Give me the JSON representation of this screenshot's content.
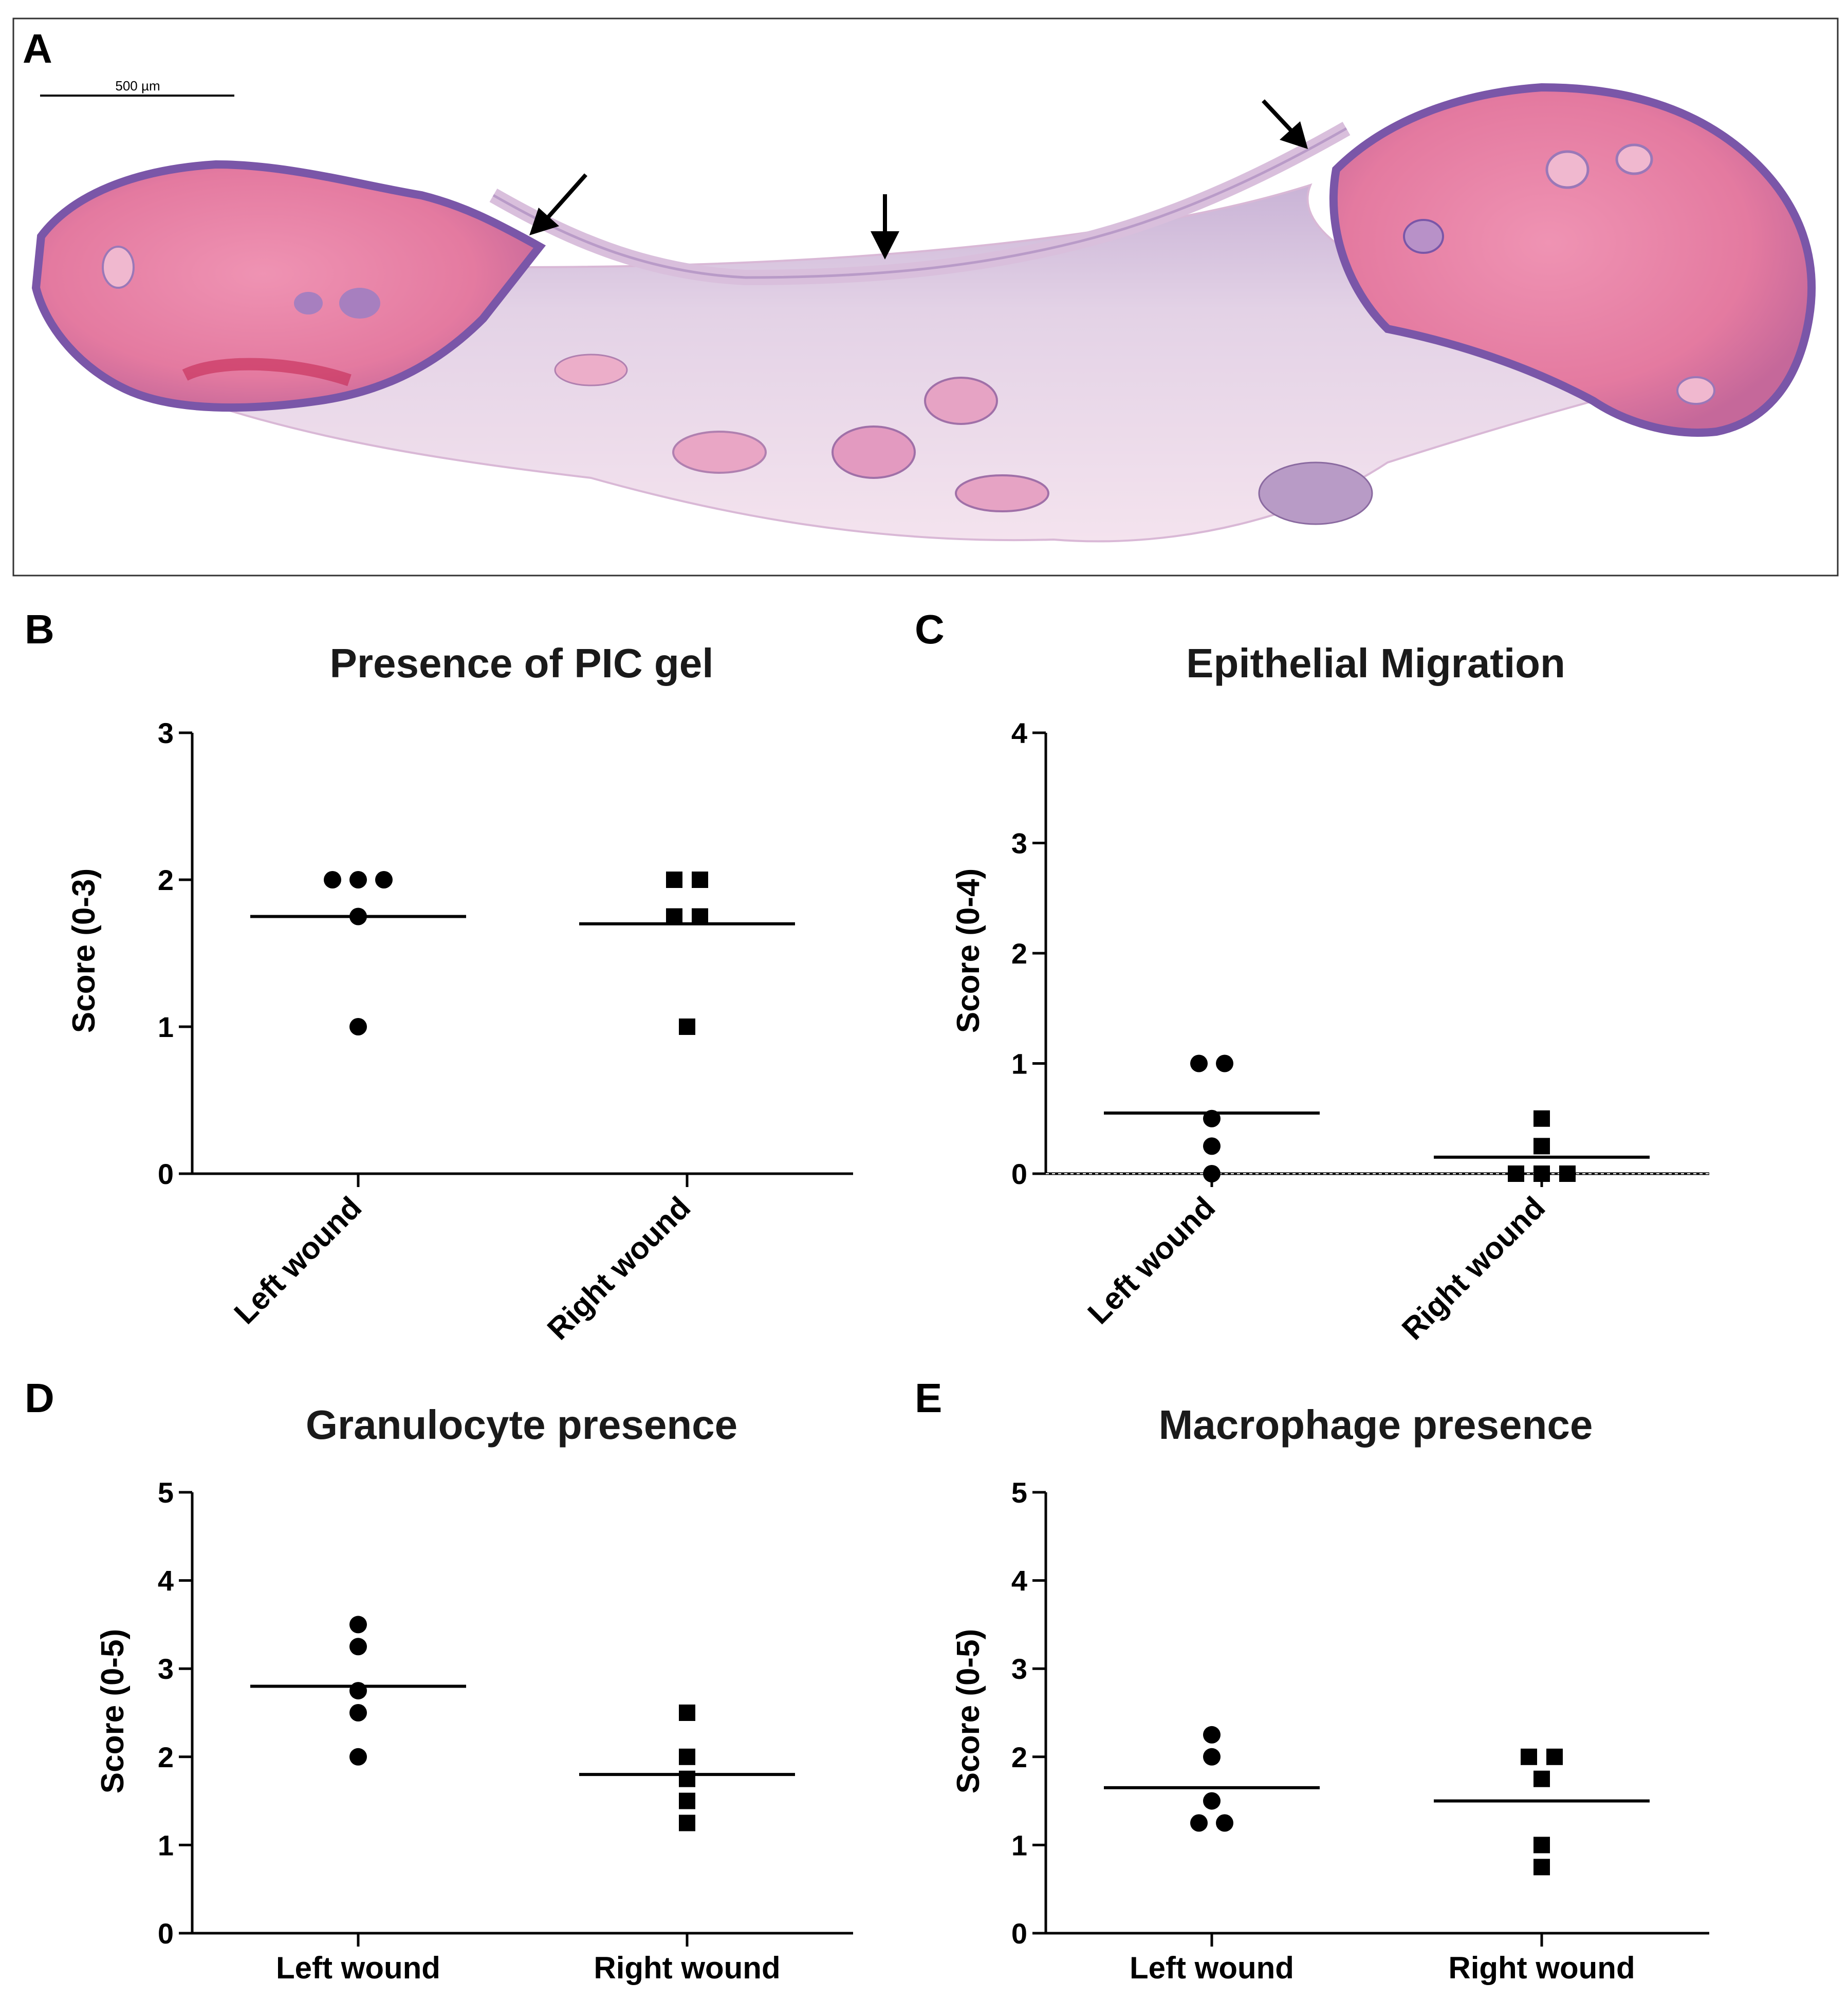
{
  "panel_a": {
    "letter": "A",
    "scale_bar_label": "500 µm",
    "image_description_icon": "histology-icon"
  },
  "chart_data": [
    {
      "id": "B",
      "letter": "B",
      "type": "scatter",
      "title": "Presence of  PIC gel",
      "ylabel": "Score (0-3)",
      "xlabel": "",
      "ylim": [
        0,
        3
      ],
      "yticks": [
        0,
        1,
        2,
        3
      ],
      "categories": [
        "Left wound",
        "Right wound"
      ],
      "rotated_labels": true,
      "zero_dotted": false,
      "series": [
        {
          "category": "Left wound",
          "marker": "circle",
          "values": [
            2,
            2,
            2,
            1.75,
            1
          ],
          "mean": 1.75
        },
        {
          "category": "Right wound",
          "marker": "square",
          "values": [
            2,
            2,
            1.75,
            1.75,
            1
          ],
          "mean": 1.7
        }
      ]
    },
    {
      "id": "C",
      "letter": "C",
      "type": "scatter",
      "title": "Epithelial Migration",
      "ylabel": "Score (0-4)",
      "xlabel": "",
      "ylim": [
        0,
        4
      ],
      "yticks": [
        0,
        1,
        2,
        3,
        4
      ],
      "categories": [
        "Left wound",
        "Right wound"
      ],
      "rotated_labels": true,
      "zero_dotted": true,
      "series": [
        {
          "category": "Left wound",
          "marker": "circle",
          "values": [
            1,
            1,
            0.5,
            0.25,
            0
          ],
          "mean": 0.55
        },
        {
          "category": "Right wound",
          "marker": "square",
          "values": [
            0.5,
            0.25,
            0,
            0,
            0
          ],
          "mean": 0.15
        }
      ]
    },
    {
      "id": "D",
      "letter": "D",
      "type": "scatter",
      "title": "Granulocyte presence",
      "ylabel": "Score (0-5)",
      "xlabel": "",
      "ylim": [
        0,
        5
      ],
      "yticks": [
        0,
        1,
        2,
        3,
        4,
        5
      ],
      "categories": [
        "Left wound",
        "Right wound"
      ],
      "rotated_labels": false,
      "zero_dotted": false,
      "series": [
        {
          "category": "Left wound",
          "marker": "circle",
          "values": [
            3.5,
            3.25,
            2.75,
            2.5,
            2
          ],
          "mean": 2.8
        },
        {
          "category": "Right wound",
          "marker": "square",
          "values": [
            2.5,
            2,
            1.75,
            1.5,
            1.25
          ],
          "mean": 1.8
        }
      ]
    },
    {
      "id": "E",
      "letter": "E",
      "type": "scatter",
      "title": "Macrophage presence",
      "ylabel": "Score (0-5)",
      "xlabel": "",
      "ylim": [
        0,
        5
      ],
      "yticks": [
        0,
        1,
        2,
        3,
        4,
        5
      ],
      "categories": [
        "Left wound",
        "Right wound"
      ],
      "rotated_labels": false,
      "zero_dotted": false,
      "series": [
        {
          "category": "Left wound",
          "marker": "circle",
          "values": [
            2.25,
            2,
            1.5,
            1.25,
            1.25
          ],
          "mean": 1.65
        },
        {
          "category": "Right wound",
          "marker": "square",
          "values": [
            2,
            2,
            1.75,
            1,
            0.75
          ],
          "mean": 1.5
        }
      ]
    }
  ]
}
